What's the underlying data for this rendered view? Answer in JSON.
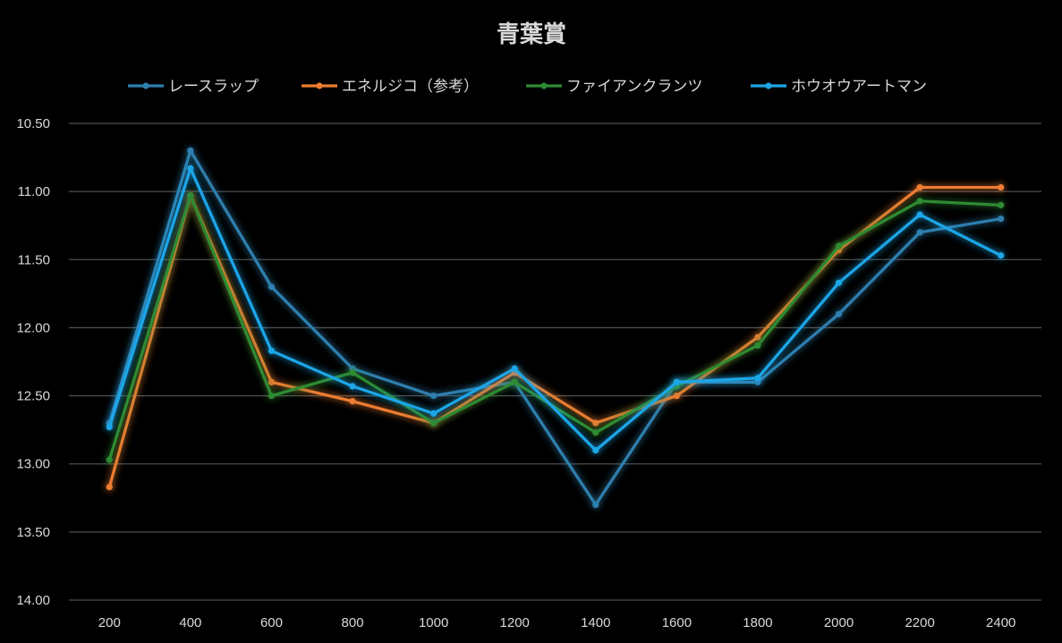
{
  "chart_data": {
    "type": "line",
    "title": "青葉賞",
    "x": [
      "200",
      "400",
      "600",
      "800",
      "1000",
      "1200",
      "1400",
      "1600",
      "1800",
      "2000",
      "2200",
      "2400"
    ],
    "y_ticks": [
      "10.50",
      "11.00",
      "11.50",
      "12.00",
      "12.50",
      "13.00",
      "13.50",
      "14.00"
    ],
    "ylim": [
      10.5,
      14.0
    ],
    "y_reversed": true,
    "grid": true,
    "legend_position": "top",
    "series": [
      {
        "name": "レースラップ",
        "color": "#2f7fae",
        "values": [
          12.7,
          10.7,
          11.7,
          12.3,
          12.5,
          12.4,
          13.3,
          12.4,
          12.4,
          11.9,
          11.3,
          11.2
        ]
      },
      {
        "name": "エネルジコ（参考）",
        "color": "#ed7d31",
        "values": [
          13.17,
          11.03,
          12.4,
          12.54,
          12.7,
          12.33,
          12.7,
          12.5,
          12.07,
          11.43,
          10.97,
          10.97
        ]
      },
      {
        "name": "ファイアンクランツ",
        "color": "#2e8b32",
        "values": [
          12.97,
          11.03,
          12.5,
          12.33,
          12.7,
          12.4,
          12.77,
          12.43,
          12.13,
          11.4,
          11.07,
          11.1
        ]
      },
      {
        "name": "ホウオウアートマン",
        "color": "#1ea6e8",
        "values": [
          12.73,
          10.83,
          12.17,
          12.43,
          12.63,
          12.3,
          12.9,
          12.4,
          12.37,
          11.67,
          11.17,
          11.47
        ]
      }
    ]
  }
}
